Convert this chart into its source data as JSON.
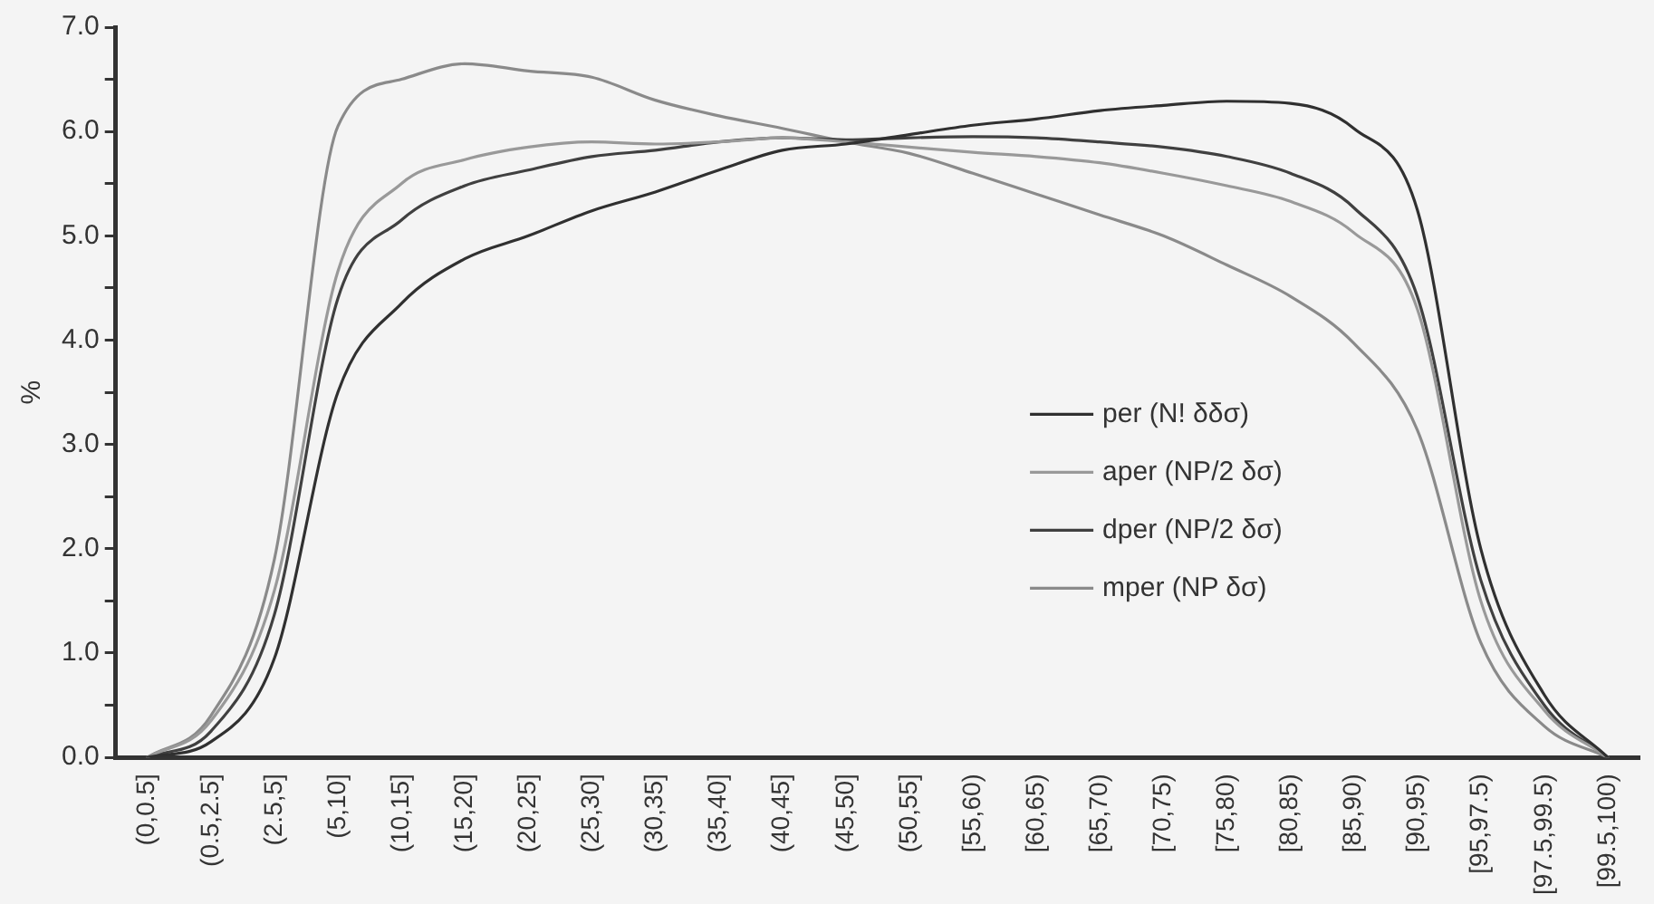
{
  "chart_data": {
    "type": "line",
    "ylabel": "%",
    "categories": [
      "(0,0.5]",
      "(0.5,2.5]",
      "(2.5,5]",
      "(5,10]",
      "(10,15]",
      "(15,20]",
      "(20,25]",
      "(25,30]",
      "(30,35]",
      "(35,40]",
      "(40,45]",
      "(45,50]",
      "(50,55]",
      "[55,60)",
      "[60,65)",
      "[65,70)",
      "[70,75)",
      "[75,80)",
      "[80,85)",
      "[85,90)",
      "[90,95)",
      "[95,97.5)",
      "[97.5,99.5)",
      "[99.5,100)"
    ],
    "series": [
      {
        "name": "per (N! δδσ)",
        "color": "#303030",
        "values": [
          0,
          0.15,
          0.95,
          3.5,
          4.35,
          4.78,
          5.0,
          5.24,
          5.42,
          5.63,
          5.82,
          5.88,
          5.97,
          6.06,
          6.12,
          6.2,
          6.25,
          6.29,
          6.27,
          6.03,
          5.25,
          2.0,
          0.6,
          0
        ]
      },
      {
        "name": "aper (NP/2 δσ)",
        "color": "#999999",
        "values": [
          0,
          0.35,
          1.6,
          4.66,
          5.5,
          5.73,
          5.85,
          5.9,
          5.88,
          5.9,
          5.94,
          5.9,
          5.85,
          5.8,
          5.76,
          5.7,
          5.6,
          5.48,
          5.33,
          5.03,
          4.3,
          1.5,
          0.45,
          0
        ]
      },
      {
        "name": "dper (NP/2 δσ)",
        "color": "#404040",
        "values": [
          0,
          0.25,
          1.37,
          4.4,
          5.15,
          5.48,
          5.63,
          5.76,
          5.82,
          5.9,
          5.94,
          5.92,
          5.94,
          5.95,
          5.94,
          5.9,
          5.85,
          5.76,
          5.6,
          5.27,
          4.42,
          1.7,
          0.5,
          0
        ]
      },
      {
        "name": "mper (NP δσ)",
        "color": "#8a8a8a",
        "values": [
          0,
          0.4,
          1.9,
          6.05,
          6.5,
          6.65,
          6.58,
          6.52,
          6.3,
          6.15,
          6.03,
          5.9,
          5.79,
          5.6,
          5.4,
          5.2,
          5.0,
          4.72,
          4.42,
          3.97,
          3.14,
          1.1,
          0.3,
          0
        ]
      }
    ],
    "ylim": [
      0,
      7
    ],
    "yticks": [
      {
        "value": 0,
        "label": "0.0"
      },
      {
        "value": 0.5,
        "label": null
      },
      {
        "value": 1,
        "label": "1.0"
      },
      {
        "value": 1.5,
        "label": null
      },
      {
        "value": 2,
        "label": "2.0"
      },
      {
        "value": 2.5,
        "label": null
      },
      {
        "value": 3,
        "label": "3.0"
      },
      {
        "value": 3.5,
        "label": null
      },
      {
        "value": 4,
        "label": "4.0"
      },
      {
        "value": 4.5,
        "label": null
      },
      {
        "value": 5,
        "label": "5.0"
      },
      {
        "value": 5.5,
        "label": null
      },
      {
        "value": 6,
        "label": "6.0"
      },
      {
        "value": 6.5,
        "label": null
      },
      {
        "value": 7,
        "label": "7.0"
      }
    ],
    "grid": false,
    "legend": "right",
    "marker": "none",
    "line_style": "solid"
  }
}
